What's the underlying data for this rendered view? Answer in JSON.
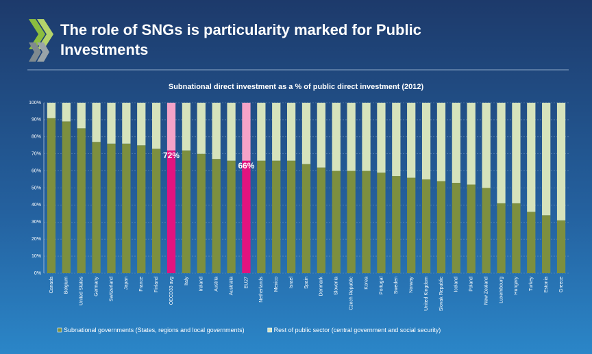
{
  "chart_data": {
    "type": "stacked_bar",
    "heading": [
      "The role of SNGs is particularity marked for Public",
      "Investments"
    ],
    "title": "Subnational direct investment as a % of public direct investment (2012)",
    "categories": [
      "Canada",
      "Belgium",
      "United States",
      "Germany",
      "Switzerland",
      "Japan",
      "France",
      "Finland",
      "OECD33 avg",
      "Italy",
      "Ireland",
      "Austria",
      "Australia",
      "EU27",
      "Netherlands",
      "Mexico",
      "Israel",
      "Spain",
      "Denmark",
      "Slovenia",
      "Czech Republic",
      "Korea",
      "Portugal",
      "Sweden",
      "Norway",
      "United Kingdom",
      "Slovak Republic",
      "Iceland",
      "Poland",
      "New Zealand",
      "Luxembourg",
      "Hungary",
      "Turkey",
      "Estonia",
      "Greece"
    ],
    "series": [
      {
        "name": "Subnational governments (States, regions and local governments)",
        "color": "#7d8f3f",
        "colors": [
          "#7d8f3f",
          "#7d8f3f",
          "#7d8f3f",
          "#7d8f3f",
          "#7d8f3f",
          "#7d8f3f",
          "#7d8f3f",
          "#7d8f3f",
          "#e2137f",
          "#7d8f3f",
          "#7d8f3f",
          "#7d8f3f",
          "#7d8f3f",
          "#e2137f",
          "#7d8f3f",
          "#7d8f3f",
          "#7d8f3f",
          "#7d8f3f",
          "#7d8f3f",
          "#7d8f3f",
          "#7d8f3f",
          "#7d8f3f",
          "#7d8f3f",
          "#7d8f3f",
          "#7d8f3f",
          "#7d8f3f",
          "#7d8f3f",
          "#7d8f3f",
          "#7d8f3f",
          "#7d8f3f",
          "#7d8f3f",
          "#7d8f3f",
          "#7d8f3f",
          "#7d8f3f",
          "#7d8f3f"
        ],
        "values": [
          91,
          89,
          85,
          77,
          76,
          76,
          75,
          73,
          72,
          72,
          70,
          67,
          66,
          66,
          66,
          66,
          66,
          64,
          62,
          60,
          60,
          60,
          59,
          57,
          56,
          55,
          54,
          53,
          52,
          50,
          41,
          41,
          36,
          34,
          31
        ],
        "value_labels": [
          null,
          null,
          null,
          null,
          null,
          null,
          null,
          null,
          "72%",
          null,
          null,
          null,
          null,
          "66%",
          null,
          null,
          null,
          null,
          null,
          null,
          null,
          null,
          null,
          null,
          null,
          null,
          null,
          null,
          null,
          null,
          null,
          null,
          null,
          null,
          null
        ]
      },
      {
        "name": "Rest of public sector (central government and social security)",
        "color": "#d6e3bc",
        "colors": [
          "#d6e3bc",
          "#d6e3bc",
          "#d6e3bc",
          "#d6e3bc",
          "#d6e3bc",
          "#d6e3bc",
          "#d6e3bc",
          "#d6e3bc",
          "#f5a3c8",
          "#d6e3bc",
          "#d6e3bc",
          "#d6e3bc",
          "#d6e3bc",
          "#f5a3c8",
          "#d6e3bc",
          "#d6e3bc",
          "#d6e3bc",
          "#d6e3bc",
          "#d6e3bc",
          "#d6e3bc",
          "#d6e3bc",
          "#d6e3bc",
          "#d6e3bc",
          "#d6e3bc",
          "#d6e3bc",
          "#d6e3bc",
          "#d6e3bc",
          "#d6e3bc",
          "#d6e3bc",
          "#d6e3bc",
          "#d6e3bc",
          "#d6e3bc",
          "#d6e3bc",
          "#d6e3bc",
          "#d6e3bc"
        ],
        "values": [
          9,
          11,
          15,
          23,
          24,
          24,
          25,
          27,
          28,
          28,
          30,
          33,
          34,
          34,
          34,
          34,
          34,
          36,
          38,
          40,
          40,
          40,
          41,
          43,
          44,
          45,
          46,
          47,
          48,
          50,
          59,
          59,
          64,
          66,
          69
        ]
      }
    ],
    "ylim": [
      0,
      100
    ],
    "yticks": [
      {
        "value": 0,
        "label": "0%"
      },
      {
        "value": 10,
        "label": "10%"
      },
      {
        "value": 20,
        "label": "20%"
      },
      {
        "value": 30,
        "label": "30%"
      },
      {
        "value": 40,
        "label": "40%"
      },
      {
        "value": 50,
        "label": "50%"
      },
      {
        "value": 60,
        "label": "60%"
      },
      {
        "value": 70,
        "label": "70%"
      },
      {
        "value": 80,
        "label": "80%"
      },
      {
        "value": 90,
        "label": "90%"
      },
      {
        "value": 100,
        "label": "100%"
      }
    ],
    "grid": true
  }
}
